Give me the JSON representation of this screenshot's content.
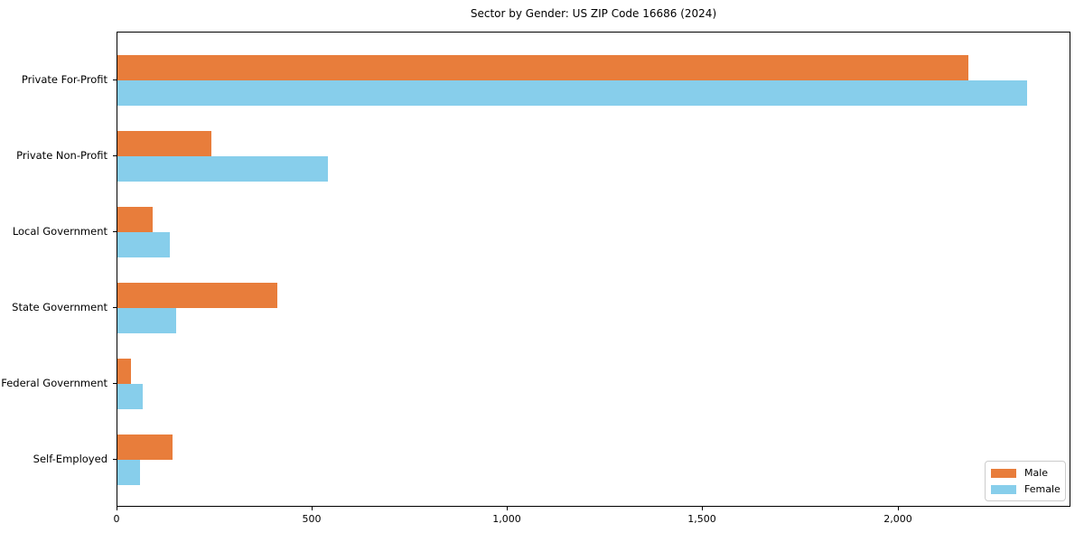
{
  "page": {
    "background": "#ffffff"
  },
  "chart_data": {
    "type": "bar",
    "orientation": "horizontal",
    "title": "Sector by Gender: US ZIP Code 16686 (2024)",
    "categories": [
      "Private For-Profit",
      "Private Non-Profit",
      "Local Government",
      "State Government",
      "Federal Government",
      "Self-Employed"
    ],
    "series": [
      {
        "name": "Male",
        "color": "#E87D3B",
        "values": [
          2180,
          240,
          90,
          410,
          35,
          140
        ]
      },
      {
        "name": "Female",
        "color": "#87CEEB",
        "values": [
          2330,
          540,
          135,
          150,
          65,
          58
        ]
      }
    ],
    "xlabel": "",
    "ylabel": "",
    "xlim": [
      0,
      2443
    ],
    "xticks": [
      0,
      500,
      1000,
      1500,
      2000
    ],
    "xtick_labels": [
      "0",
      "500",
      "1,000",
      "1,500",
      "2,000"
    ],
    "grid": false,
    "legend": {
      "position": "lower right",
      "entries": [
        "Male",
        "Female"
      ]
    },
    "colors": {
      "spine": "#000000",
      "text": "#000000",
      "legend_border": "#cccccc"
    }
  }
}
